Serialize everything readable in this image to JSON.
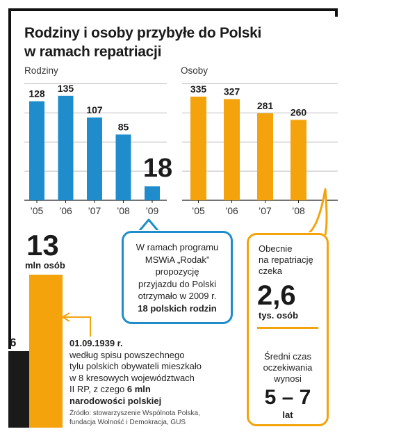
{
  "title_line1": "Rodziny i osoby przybyłe do Polski",
  "title_line2": "w ramach repatriacji",
  "chart_data": [
    {
      "type": "bar",
      "axis_title": "Rodziny",
      "categories": [
        "’05",
        "’06",
        "’07",
        "’08",
        "’09"
      ],
      "values": [
        128,
        135,
        107,
        85,
        18
      ],
      "value_labels": [
        "128",
        "135",
        "107",
        "85",
        "18"
      ],
      "color": "#1f8dcb",
      "ylim": [
        0,
        160
      ],
      "grid": true
    },
    {
      "type": "bar",
      "axis_title": "Osoby",
      "categories": [
        "’05",
        "’06",
        "’07",
        "’08"
      ],
      "values": [
        335,
        327,
        281,
        260
      ],
      "value_labels": [
        "335",
        "327",
        "281",
        "260"
      ],
      "color": "#f4a30c",
      "ylim": [
        0,
        400
      ],
      "grid": true
    }
  ],
  "callout_blue": {
    "line1": "W ramach programu",
    "line2": "MSWiA „Rodak”",
    "line3": "propozycję",
    "line4": "przyjazdu do Polski",
    "line5": "otrzymało w 2009 r.",
    "line6": "18 polskich rodzin"
  },
  "callout_orange": {
    "line1": "Obecnie",
    "line2": "na repatriację",
    "line3": "czeka",
    "big_value": "2,6",
    "big_unit": "tys. osób",
    "line4": "Średni czas",
    "line5": "oczekiwania",
    "line6": "wynosi",
    "wait_value": "5 – 7",
    "wait_unit": "lat"
  },
  "historic": {
    "big_value": "13",
    "big_unit": "mln osób",
    "small_value": "6",
    "date": "01.09.1939 r.",
    "line1": "według spisu powszechnego",
    "line2": "tylu polskich obywateli mieszkało",
    "line3": "w 8 kresowych województwach",
    "line4_pre": "II RP, z czego ",
    "line4_bold": "6 mln",
    "line5": "narodowości polskiej"
  },
  "source": {
    "line1": "Źródło: stowarzyszenie Wspólnota Polska,",
    "line2": "fundacja Wolność i Demokracja, GUS"
  },
  "colors": {
    "blue": "#1f8dcb",
    "orange": "#f4a30c",
    "black": "#1a1a1a"
  }
}
